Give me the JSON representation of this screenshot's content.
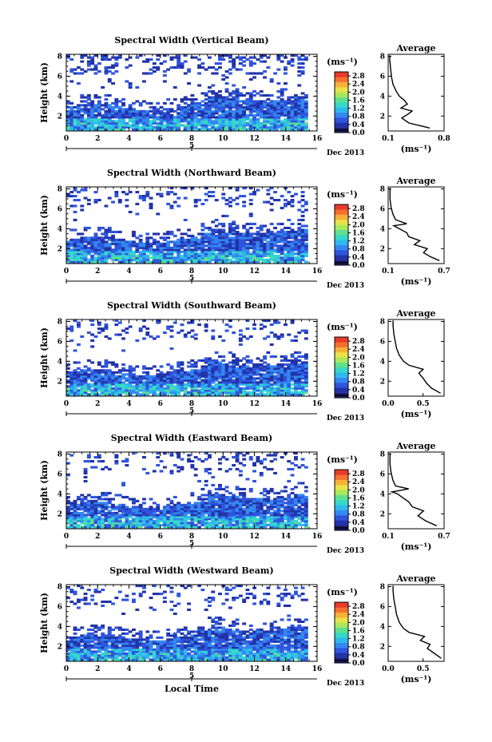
{
  "chart_data": [
    {
      "type": "heatmap",
      "title": "Spectral Width (Vertical Beam)",
      "ylabel": "Height (km)",
      "xlim": [
        0,
        16
      ],
      "ylim": [
        0.5,
        8.2
      ],
      "x_ticks": [
        "0",
        "2",
        "4",
        "6",
        "8",
        "10",
        "12",
        "14",
        "16"
      ],
      "y_ticks": [
        "2",
        "4",
        "6",
        "8"
      ],
      "date_label": "Dec 2013",
      "day_label": "5",
      "colorbar": {
        "unit": "(ms⁻¹)",
        "ticks": [
          "0.0",
          "0.4",
          "0.8",
          "1.2",
          "1.6",
          "2.0",
          "2.4",
          "2.8"
        ],
        "range": [
          0,
          3.0
        ]
      },
      "upper_cover": 0.25,
      "average_profile": {
        "title": "Average",
        "xlabel": "(ms⁻¹)",
        "x_ticks": [
          "0.1",
          "0.8"
        ],
        "xlim": [
          0.1,
          0.8
        ],
        "y_ticks": [
          "2",
          "4",
          "6",
          "8"
        ],
        "ylim": [
          0.5,
          8.2
        ],
        "points": [
          [
            0.62,
            0.8
          ],
          [
            0.52,
            1.0
          ],
          [
            0.36,
            1.3
          ],
          [
            0.27,
            1.8
          ],
          [
            0.35,
            2.2
          ],
          [
            0.4,
            2.5
          ],
          [
            0.26,
            2.8
          ],
          [
            0.34,
            3.2
          ],
          [
            0.3,
            3.6
          ],
          [
            0.24,
            4.0
          ],
          [
            0.2,
            4.5
          ],
          [
            0.16,
            5.2
          ],
          [
            0.14,
            6.0
          ],
          [
            0.13,
            6.8
          ],
          [
            0.12,
            7.6
          ],
          [
            0.12,
            8.1
          ]
        ]
      }
    },
    {
      "type": "heatmap",
      "title": "Spectral Width (Northward Beam)",
      "ylabel": "Height (km)",
      "xlim": [
        0,
        16
      ],
      "ylim": [
        0.5,
        8.2
      ],
      "x_ticks": [
        "0",
        "2",
        "4",
        "6",
        "8",
        "10",
        "12",
        "14",
        "16"
      ],
      "y_ticks": [
        "2",
        "4",
        "6",
        "8"
      ],
      "date_label": "Dec 2013",
      "day_label": "5",
      "colorbar": {
        "unit": "(ms⁻¹)",
        "ticks": [
          "0.0",
          "0.4",
          "0.8",
          "1.2",
          "1.6",
          "2.0",
          "2.4",
          "2.8"
        ],
        "range": [
          0,
          3.0
        ]
      },
      "upper_cover": 0.18,
      "average_profile": {
        "title": "Average",
        "xlabel": "(ms⁻¹)",
        "x_ticks": [
          "0.1",
          "0.7"
        ],
        "xlim": [
          0.1,
          0.7
        ],
        "y_ticks": [
          "2",
          "4",
          "6",
          "8"
        ],
        "ylim": [
          0.5,
          8.2
        ],
        "points": [
          [
            0.65,
            0.8
          ],
          [
            0.55,
            1.2
          ],
          [
            0.48,
            1.6
          ],
          [
            0.52,
            2.0
          ],
          [
            0.38,
            2.4
          ],
          [
            0.44,
            2.8
          ],
          [
            0.32,
            3.2
          ],
          [
            0.3,
            3.6
          ],
          [
            0.22,
            4.0
          ],
          [
            0.16,
            4.3
          ],
          [
            0.3,
            4.5
          ],
          [
            0.18,
            4.9
          ],
          [
            0.15,
            5.5
          ],
          [
            0.13,
            6.2
          ],
          [
            0.12,
            7.0
          ],
          [
            0.12,
            8.1
          ]
        ]
      }
    },
    {
      "type": "heatmap",
      "title": "Spectral Width (Southward Beam)",
      "ylabel": "Height (km)",
      "xlim": [
        0,
        16
      ],
      "ylim": [
        0.5,
        8.2
      ],
      "x_ticks": [
        "0",
        "2",
        "4",
        "6",
        "8",
        "10",
        "12",
        "14",
        "16"
      ],
      "y_ticks": [
        "2",
        "4",
        "6",
        "8"
      ],
      "date_label": "Dec 2013",
      "day_label": "5",
      "colorbar": {
        "unit": "(ms⁻¹)",
        "ticks": [
          "0.0",
          "0.4",
          "0.8",
          "1.2",
          "1.6",
          "2.0",
          "2.4",
          "2.8"
        ],
        "range": [
          0,
          3.0
        ]
      },
      "upper_cover": 0.14,
      "average_profile": {
        "title": "Average",
        "xlabel": "(ms⁻¹)",
        "x_ticks": [
          "0.0",
          "0.5"
        ],
        "xlim": [
          0.0,
          0.8
        ],
        "y_ticks": [
          "2",
          "4",
          "6",
          "8"
        ],
        "ylim": [
          0.5,
          8.2
        ],
        "points": [
          [
            0.75,
            0.8
          ],
          [
            0.62,
            1.3
          ],
          [
            0.55,
            1.8
          ],
          [
            0.5,
            2.3
          ],
          [
            0.44,
            2.8
          ],
          [
            0.5,
            3.2
          ],
          [
            0.3,
            3.6
          ],
          [
            0.22,
            4.0
          ],
          [
            0.16,
            4.6
          ],
          [
            0.12,
            5.3
          ],
          [
            0.1,
            6.0
          ],
          [
            0.08,
            6.8
          ],
          [
            0.07,
            7.6
          ],
          [
            0.07,
            8.1
          ]
        ]
      }
    },
    {
      "type": "heatmap",
      "title": "Spectral Width (Eastward Beam)",
      "ylabel": "Height (km)",
      "xlim": [
        0,
        16
      ],
      "ylim": [
        0.5,
        8.2
      ],
      "x_ticks": [
        "0",
        "2",
        "4",
        "6",
        "8",
        "10",
        "12",
        "14",
        "16"
      ],
      "y_ticks": [
        "2",
        "4",
        "6",
        "8"
      ],
      "date_label": "Dec 2013",
      "day_label": "5",
      "colorbar": {
        "unit": "(ms⁻¹)",
        "ticks": [
          "0.0",
          "0.4",
          "0.8",
          "1.2",
          "1.6",
          "2.0",
          "2.4",
          "2.8"
        ],
        "range": [
          0,
          3.0
        ]
      },
      "upper_cover": 0.2,
      "average_profile": {
        "title": "Average",
        "xlabel": "(ms⁻¹)",
        "x_ticks": [
          "0.1",
          "0.7"
        ],
        "xlim": [
          0.1,
          0.7
        ],
        "y_ticks": [
          "2",
          "4",
          "6",
          "8"
        ],
        "ylim": [
          0.5,
          8.2
        ],
        "points": [
          [
            0.62,
            0.8
          ],
          [
            0.5,
            1.3
          ],
          [
            0.42,
            1.8
          ],
          [
            0.48,
            2.3
          ],
          [
            0.36,
            2.7
          ],
          [
            0.32,
            3.2
          ],
          [
            0.26,
            3.6
          ],
          [
            0.2,
            4.0
          ],
          [
            0.14,
            4.2
          ],
          [
            0.32,
            4.5
          ],
          [
            0.18,
            4.8
          ],
          [
            0.15,
            5.4
          ],
          [
            0.13,
            6.2
          ],
          [
            0.12,
            7.0
          ],
          [
            0.12,
            8.1
          ]
        ]
      }
    },
    {
      "type": "heatmap",
      "title": "Spectral Width (Westward Beam)",
      "ylabel": "Height (km)",
      "xlabel": "Local Time",
      "xlim": [
        0,
        16
      ],
      "ylim": [
        0.5,
        8.2
      ],
      "x_ticks": [
        "0",
        "2",
        "4",
        "6",
        "8",
        "10",
        "12",
        "14",
        "16"
      ],
      "y_ticks": [
        "2",
        "4",
        "6",
        "8"
      ],
      "date_label": "Dec 2013",
      "day_label": "5",
      "colorbar": {
        "unit": "(ms⁻¹)",
        "ticks": [
          "0.0",
          "0.4",
          "0.8",
          "1.2",
          "1.6",
          "2.0",
          "2.4",
          "2.8"
        ],
        "range": [
          0,
          3.0
        ]
      },
      "upper_cover": 0.14,
      "average_profile": {
        "title": "Average",
        "xlabel": "(ms⁻¹)",
        "x_ticks": [
          "0.0",
          "0.5"
        ],
        "xlim": [
          0.0,
          0.8
        ],
        "y_ticks": [
          "2",
          "4",
          "6",
          "8"
        ],
        "ylim": [
          0.5,
          8.2
        ],
        "points": [
          [
            0.76,
            0.8
          ],
          [
            0.66,
            1.3
          ],
          [
            0.56,
            1.8
          ],
          [
            0.6,
            2.2
          ],
          [
            0.46,
            2.6
          ],
          [
            0.52,
            3.0
          ],
          [
            0.3,
            3.4
          ],
          [
            0.22,
            3.8
          ],
          [
            0.16,
            4.4
          ],
          [
            0.12,
            5.2
          ],
          [
            0.1,
            6.0
          ],
          [
            0.08,
            6.8
          ],
          [
            0.07,
            7.6
          ],
          [
            0.07,
            8.1
          ]
        ]
      }
    }
  ],
  "colors": {
    "scale": [
      "#1e1e6e",
      "#2233a8",
      "#2f55dc",
      "#3388f0",
      "#2fb8ee",
      "#36d8c8",
      "#5ee08e",
      "#a8e85a",
      "#e8e24a",
      "#f6b038",
      "#f4702e",
      "#e83a2a"
    ],
    "below_min": "#4b4b8c"
  }
}
